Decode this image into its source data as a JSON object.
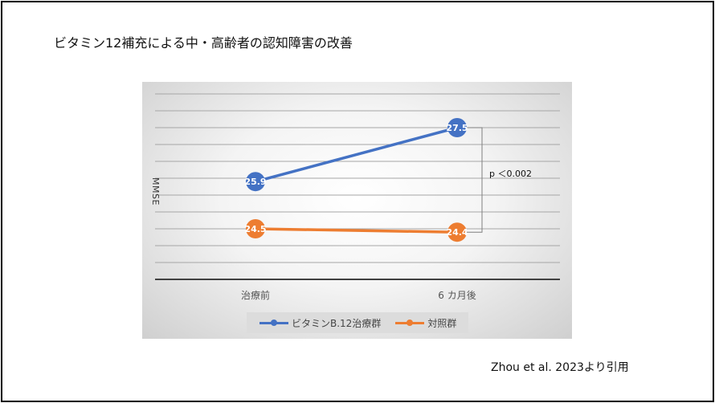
{
  "title": "ビタミン12補充による中・高齢者の認知障害の改善",
  "citation": "Zhou et al. 2023より引用",
  "chart_data": {
    "type": "line",
    "categories": [
      "治療前",
      "6 カ月後"
    ],
    "ylabel": "MMSE",
    "ylim": [
      23,
      28.5
    ],
    "series": [
      {
        "name": "ビタミンB.12治療群",
        "values": [
          25.9,
          27.5
        ],
        "labels": [
          "25.9",
          "27.5"
        ],
        "color": "#4472c4"
      },
      {
        "name": "対照群",
        "values": [
          24.5,
          24.4
        ],
        "labels": [
          "24.5",
          "24.4"
        ],
        "color": "#ed7d31"
      }
    ],
    "annotation": "p ＜0.002",
    "grid": true,
    "legend_position": "bottom"
  }
}
